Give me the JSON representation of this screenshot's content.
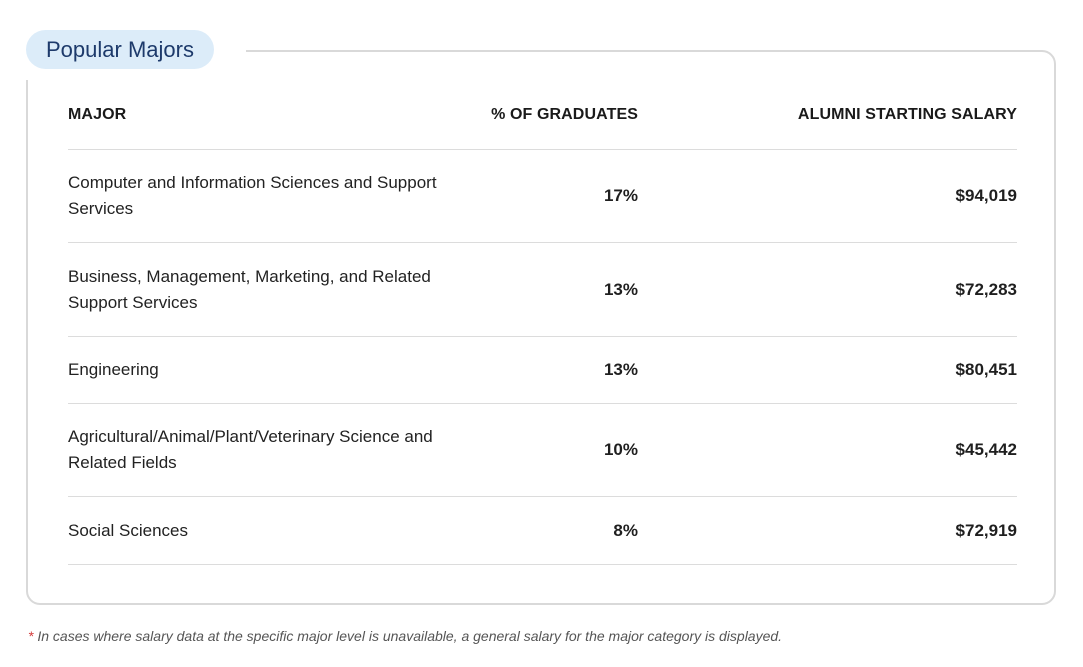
{
  "section_title": "Popular Majors",
  "table": {
    "headers": {
      "major": "MAJOR",
      "percent": "% OF GRADUATES",
      "salary": "ALUMNI STARTING SALARY"
    },
    "rows": [
      {
        "major": "Computer and Information Sciences and Support Services",
        "percent": "17%",
        "salary": "$94,019"
      },
      {
        "major": "Business, Management, Marketing, and Related Support Services",
        "percent": "13%",
        "salary": "$72,283"
      },
      {
        "major": "Engineering",
        "percent": "13%",
        "salary": "$80,451"
      },
      {
        "major": "Agricultural/Animal/Plant/Veterinary Science and Related Fields",
        "percent": "10%",
        "salary": "$45,442"
      },
      {
        "major": "Social Sciences",
        "percent": "8%",
        "salary": "$72,919"
      }
    ]
  },
  "footnote": {
    "marker": "*",
    "text": " In cases where salary data at the specific major level is unavailable, a general salary for the major category is displayed."
  }
}
